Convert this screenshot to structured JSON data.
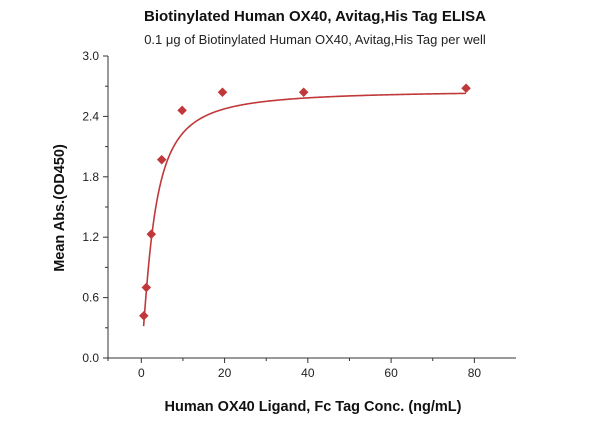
{
  "chart_data": {
    "type": "scatter",
    "title": "Biotinylated Human OX40, Avitag,His Tag ELISA",
    "subtitle": "0.1 μg of Biotinylated Human OX40, Avitag,His Tag per well",
    "xlabel": "Human OX40 Ligand, Fc Tag Conc. (ng/mL)",
    "ylabel": "Mean Abs.(OD450)",
    "xlim": [
      -8,
      90
    ],
    "ylim": [
      0,
      3.0
    ],
    "x_ticks": [
      0,
      20,
      40,
      60,
      80
    ],
    "x_tick_labels": [
      "0",
      "20",
      "40",
      "60",
      "80"
    ],
    "y_ticks": [
      0.0,
      0.6,
      1.2,
      1.8,
      2.4,
      3.0
    ],
    "y_tick_labels": [
      "0.0",
      "0.6",
      "1.2",
      "1.8",
      "2.4",
      "3.0"
    ],
    "grid": false,
    "series": [
      {
        "x": [
          0.6,
          1.2,
          2.4,
          4.9,
          9.8,
          19.5,
          39,
          78
        ],
        "y": [
          0.42,
          0.7,
          1.23,
          1.97,
          2.46,
          2.64,
          2.64,
          2.68
        ],
        "marker": "diamond",
        "color": "#c0383a",
        "fit": "four-parameter logistic"
      }
    ]
  }
}
